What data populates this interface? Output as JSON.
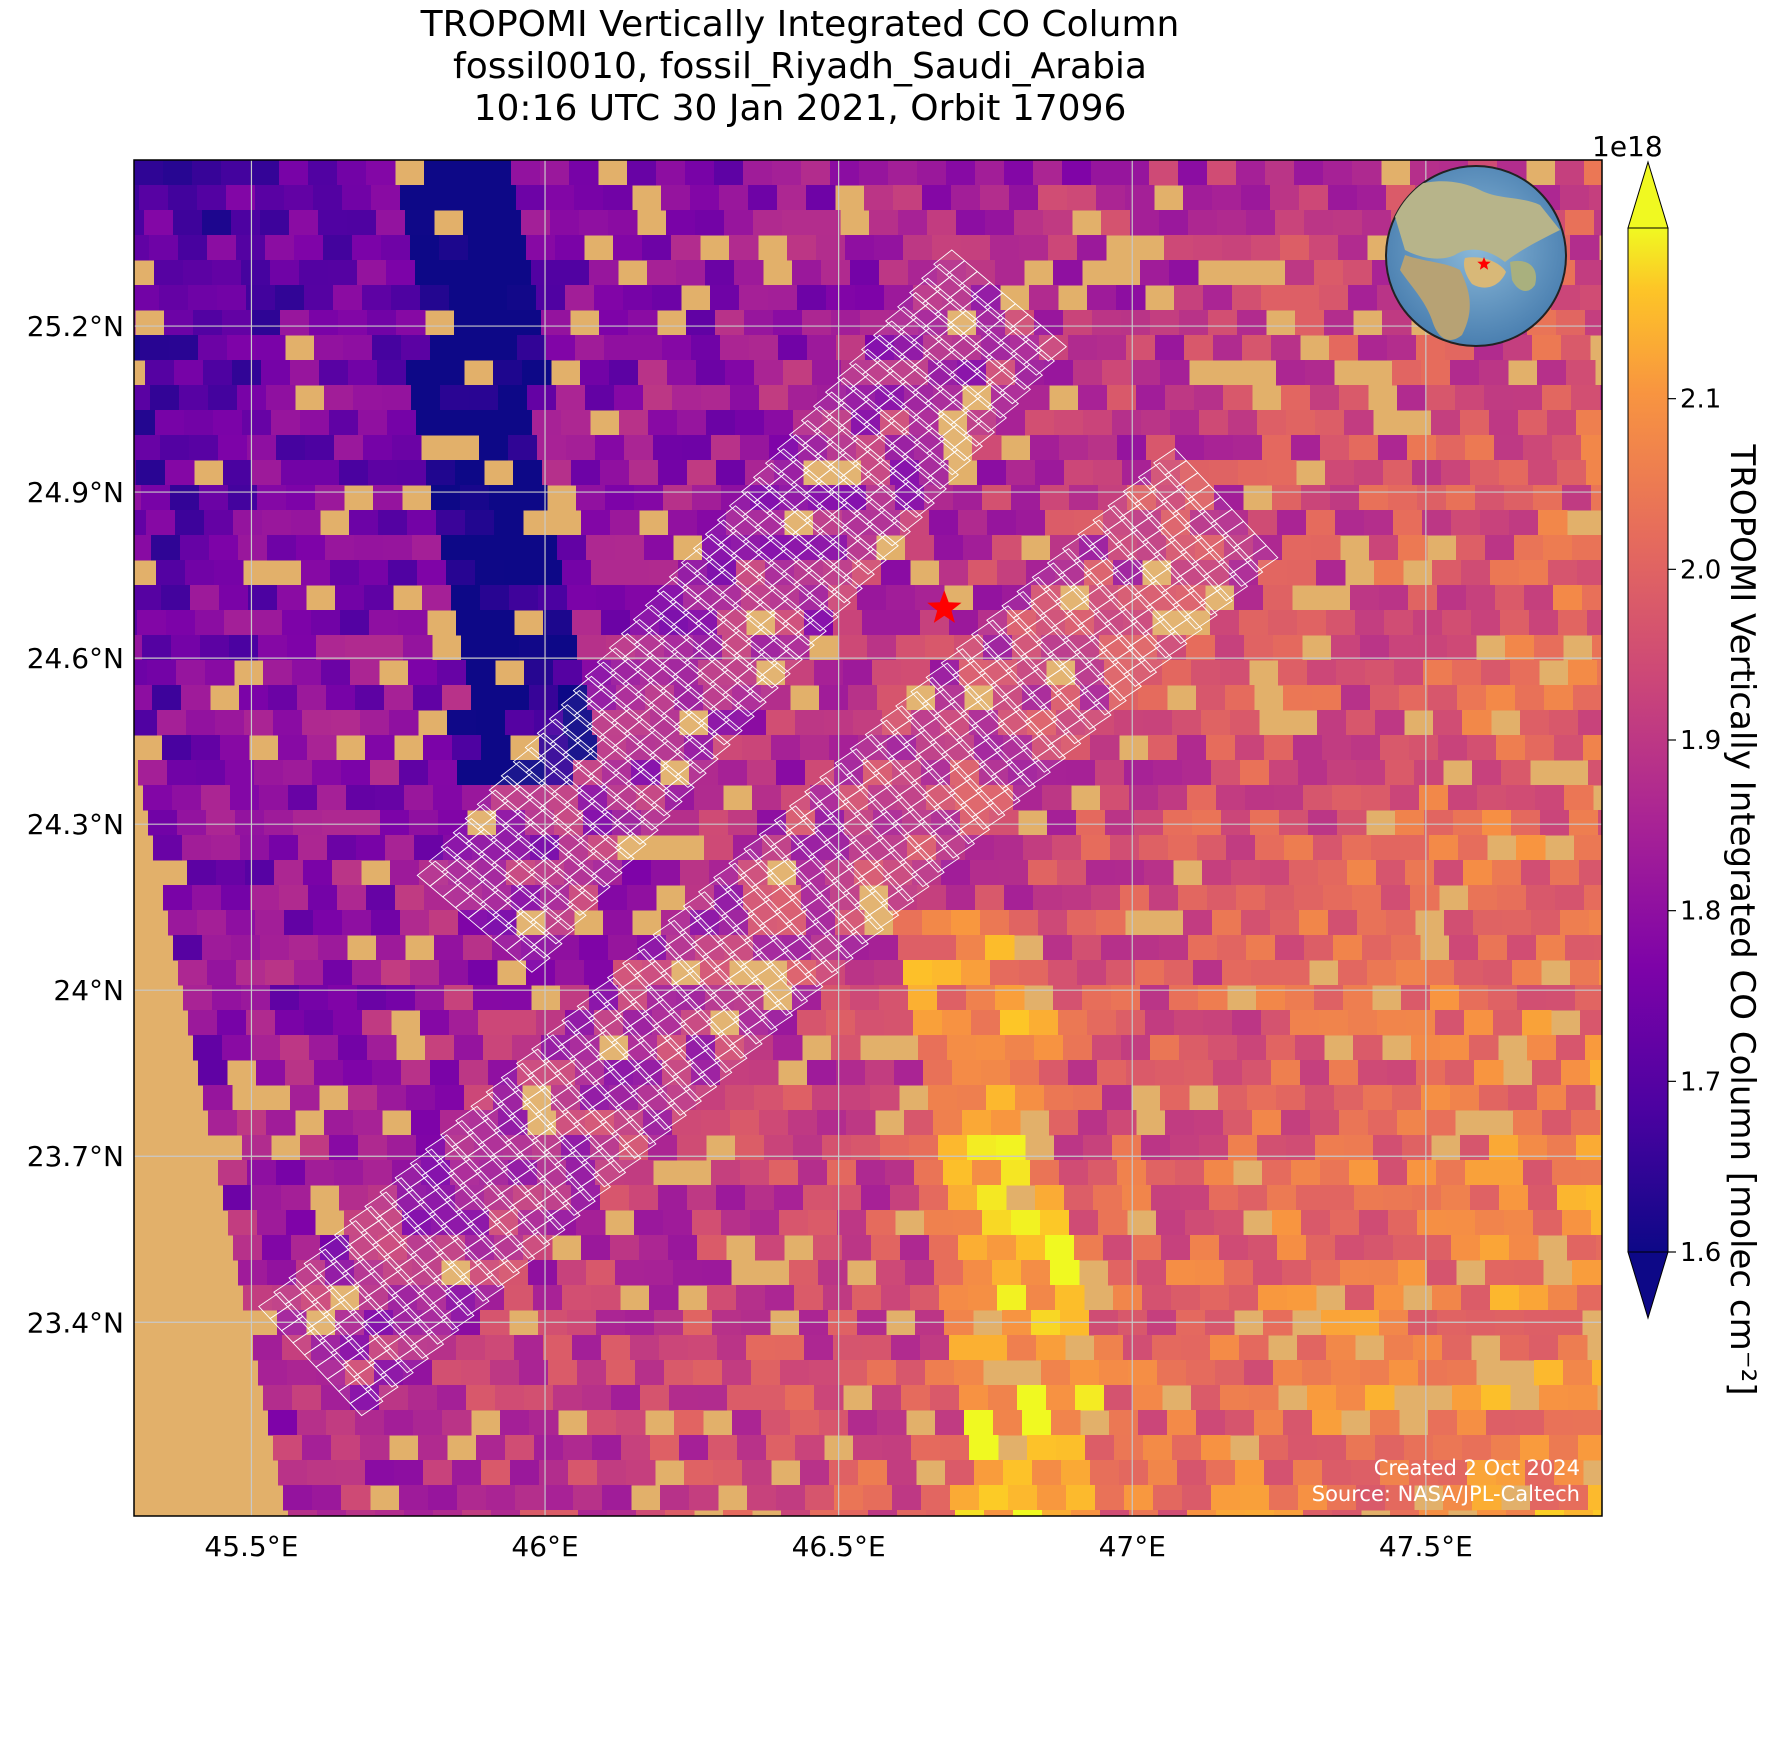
{
  "title": {
    "line1": "TROPOMI Vertically Integrated CO Column",
    "line2": "fossil0010, fossil_Riyadh_Saudi_Arabia",
    "line3": "10:16 UTC 30 Jan 2021, Orbit 17096"
  },
  "map": {
    "lon_range": [
      45.3,
      47.8
    ],
    "lat_range": [
      23.05,
      25.5
    ],
    "lon_ticks": [
      {
        "value": 45.5,
        "label": "45.5°E"
      },
      {
        "value": 46.0,
        "label": "46°E"
      },
      {
        "value": 46.5,
        "label": "46.5°E"
      },
      {
        "value": 47.0,
        "label": "47°E"
      },
      {
        "value": 47.5,
        "label": "47.5°E"
      }
    ],
    "lat_ticks": [
      {
        "value": 25.2,
        "label": "25.2°N"
      },
      {
        "value": 24.9,
        "label": "24.9°N"
      },
      {
        "value": 24.6,
        "label": "24.6°N"
      },
      {
        "value": 24.3,
        "label": "24.3°N"
      },
      {
        "value": 24.0,
        "label": "24°N"
      },
      {
        "value": 23.7,
        "label": "23.7°N"
      },
      {
        "value": 23.4,
        "label": "23.4°N"
      }
    ],
    "site_marker": {
      "lon": 46.68,
      "lat": 24.69,
      "color": "#ff0000",
      "icon": "star-icon"
    },
    "grid": true,
    "basemap": "satellite desert imagery",
    "inset_globe": {
      "center": "Arabian Peninsula",
      "marker_color": "#ff0000",
      "icon": "globe-icon",
      "position": "top-right"
    }
  },
  "colorbar": {
    "label": "TROPOMI Vertically Integrated CO Column [molec cm$^{-2}$]",
    "label_display": "TROPOMI Vertically Integrated CO Column [molec cm⁻²]",
    "offset_text": "1e18",
    "range": [
      1.6,
      2.2
    ],
    "ticks": [
      {
        "value": 1.6,
        "label": "1.6"
      },
      {
        "value": 1.7,
        "label": "1.7"
      },
      {
        "value": 1.8,
        "label": "1.8"
      },
      {
        "value": 1.9,
        "label": "1.9"
      },
      {
        "value": 2.0,
        "label": "2.0"
      },
      {
        "value": 2.1,
        "label": "2.1"
      }
    ],
    "colormap": "plasma",
    "extend": "both"
  },
  "credits": {
    "line1": "Created 2 Oct 2024",
    "line2": "Source: NASA/JPL-Caltech"
  },
  "colors": {
    "desert": "#e2b06a",
    "target_grid": "#ffffff",
    "marker": "#ff0000"
  }
}
